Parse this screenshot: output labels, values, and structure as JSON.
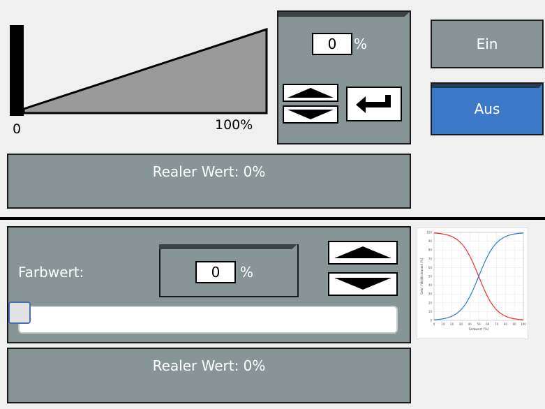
{
  "top": {
    "ramp": {
      "min_label": "0",
      "max_label": "100%"
    },
    "setpoint": {
      "value": "0",
      "unit": "%"
    },
    "real_value": "Realer Wert: 0%"
  },
  "buttons": {
    "on_label": "Ein",
    "off_label": "Aus"
  },
  "bottom": {
    "color_label": "Farbwert:",
    "setpoint": {
      "value": "0",
      "unit": "%"
    },
    "slider_value": 0,
    "real_value": "Realer Wert: 0%"
  },
  "curve_chart": {
    "xlabel": "Farbwert [%]",
    "ylabel": "Gelb- / Weißlichtanteil [%]",
    "x_ticks": [
      "0",
      "10",
      "20",
      "30",
      "40",
      "50",
      "60",
      "70",
      "80",
      "90",
      "100"
    ],
    "y_ticks": [
      "0",
      "10",
      "20",
      "30",
      "40",
      "50",
      "60",
      "70",
      "80",
      "90",
      "100"
    ],
    "colors": {
      "red": "#e8302a",
      "blue": "#2a7ac8"
    }
  },
  "colors": {
    "panel": "#879596",
    "accent": "#3c78c8",
    "divider": "#000000"
  }
}
